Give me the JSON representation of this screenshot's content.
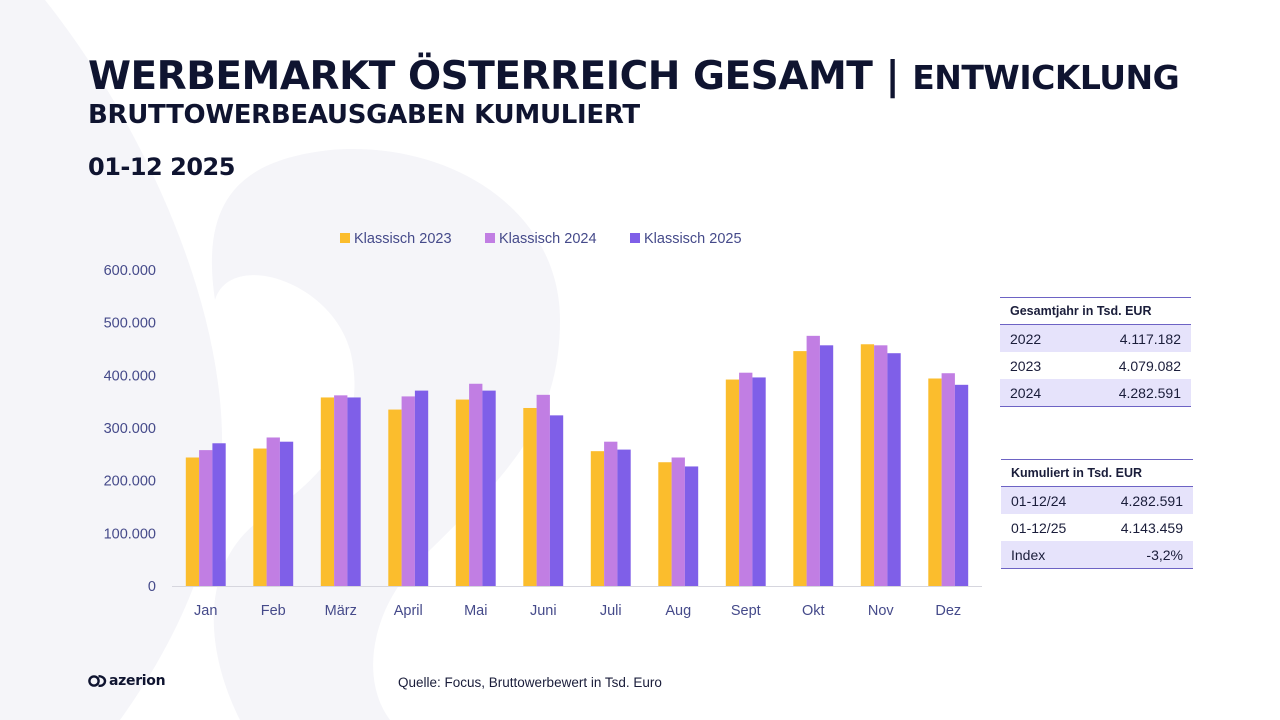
{
  "title": {
    "main": "WERBEMARKT ÖSTERREICH GESAMT",
    "separator": "|",
    "suffix": "ENTWICKLUNG",
    "subtitle": "BRUTTOWERBEAUSGABEN KUMULIERT",
    "period": "01-12 2025"
  },
  "chart_data": {
    "type": "bar",
    "categories": [
      "Jan",
      "Feb",
      "März",
      "April",
      "Mai",
      "Juni",
      "Juli",
      "Aug",
      "Sept",
      "Okt",
      "Nov",
      "Dez"
    ],
    "series": [
      {
        "name": "Klassisch 2023",
        "color": "#fbbd2d",
        "values": [
          244000,
          261000,
          358000,
          335000,
          354000,
          338000,
          256000,
          235000,
          392000,
          446000,
          459000,
          394000
        ]
      },
      {
        "name": "Klassisch 2024",
        "color": "#c17ee3",
        "values": [
          258000,
          282000,
          362000,
          360000,
          384000,
          363000,
          274000,
          244000,
          405000,
          475000,
          457000,
          404000
        ]
      },
      {
        "name": "Klassisch 2025",
        "color": "#7f5fe8",
        "values": [
          271000,
          274000,
          358000,
          371000,
          371000,
          324000,
          259000,
          227000,
          396000,
          457000,
          442000,
          382000
        ]
      }
    ],
    "ylim": [
      0,
      600000
    ],
    "yticks": [
      0,
      100000,
      200000,
      300000,
      400000,
      500000,
      600000
    ],
    "ytick_labels": [
      "0",
      "100.000",
      "200.000",
      "300.000",
      "400.000",
      "500.000",
      "600.000"
    ],
    "legend_position": "top",
    "grid": false
  },
  "tables": {
    "total": {
      "header": "Gesamtjahr in Tsd. EUR",
      "rows": [
        {
          "label": "2022",
          "value": "4.117.182"
        },
        {
          "label": "2023",
          "value": "4.079.082"
        },
        {
          "label": "2024",
          "value": "4.282.591"
        }
      ]
    },
    "cumulative": {
      "header": "Kumuliert in Tsd. EUR",
      "rows": [
        {
          "label": "01-12/24",
          "value": "4.282.591"
        },
        {
          "label": "01-12/25",
          "value": "4.143.459"
        },
        {
          "label": "Index",
          "value": "-3,2%"
        }
      ]
    }
  },
  "footer": {
    "source": "Quelle: Focus, Bruttowerbewert in Tsd. Euro",
    "logo_text": "azerion"
  },
  "colors": {
    "title": "#0f1430",
    "axis_text": "#454a8a",
    "table_shade": "#e6e3fb",
    "table_rule": "#6d63c4"
  }
}
